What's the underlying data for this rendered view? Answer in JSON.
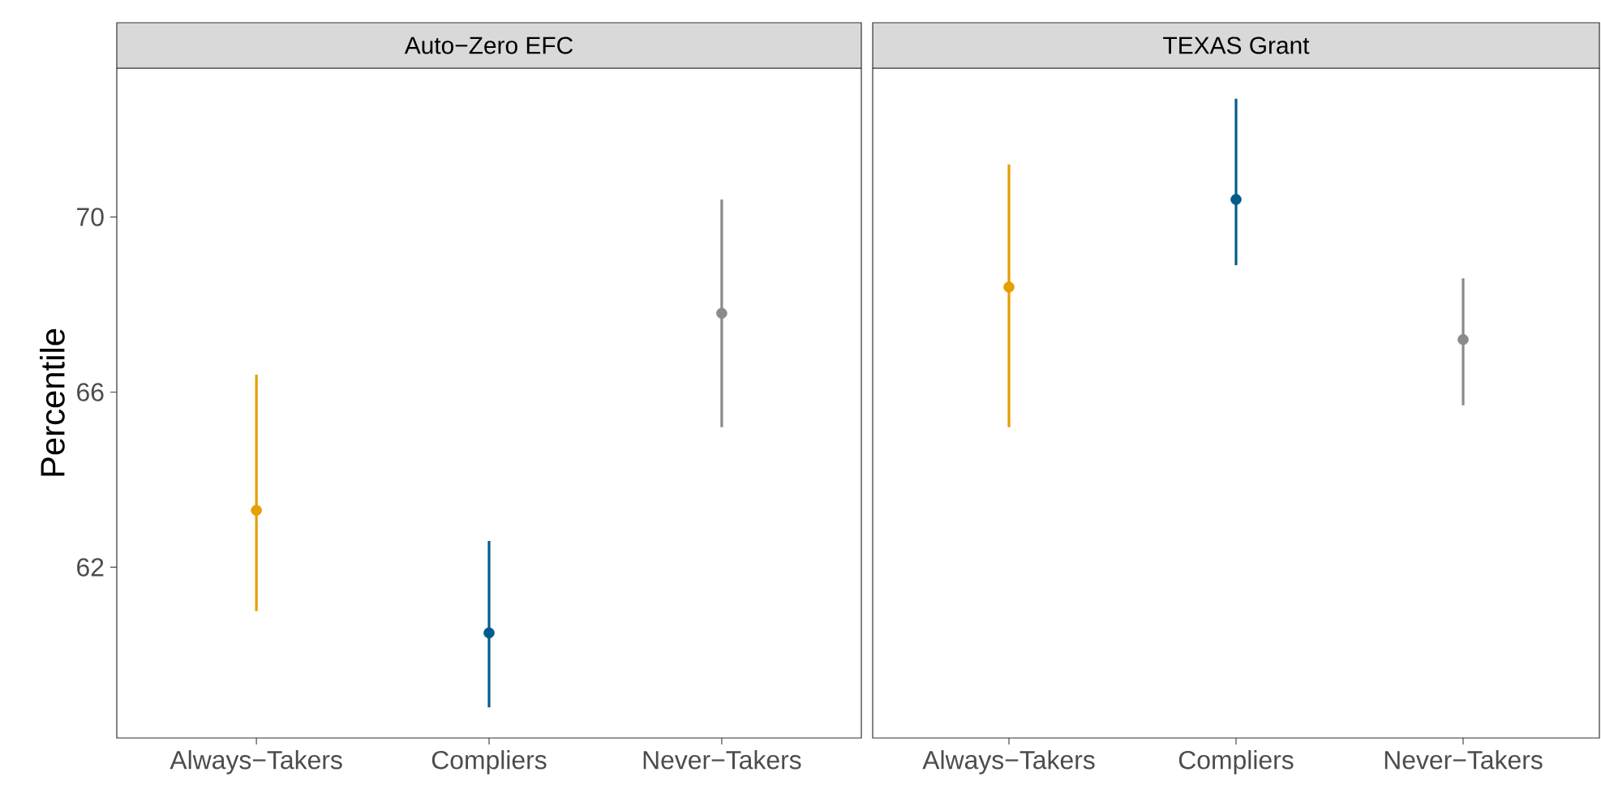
{
  "chart_data": [
    {
      "type": "scatter",
      "title": "Auto−Zero EFC",
      "ylabel": "Percentile",
      "categories": [
        "Always−Takers",
        "Compliers",
        "Never−Takers"
      ],
      "values": [
        63.3,
        60.5,
        67.8
      ],
      "errors": [
        [
          61.0,
          66.4
        ],
        [
          58.8,
          62.6
        ],
        [
          65.2,
          70.4
        ]
      ],
      "colors": [
        "#e69f00",
        "#035c8c",
        "#8a8a8a"
      ],
      "marker": "circle",
      "ylim": [
        58.1,
        73.4
      ],
      "yticks": [
        62,
        66,
        70
      ]
    },
    {
      "type": "scatter",
      "title": "TEXAS Grant",
      "categories": [
        "Always−Takers",
        "Compliers",
        "Never−Takers"
      ],
      "values": [
        68.4,
        70.4,
        67.2
      ],
      "errors": [
        [
          65.2,
          71.2
        ],
        [
          68.9,
          72.7
        ],
        [
          65.7,
          68.6
        ]
      ],
      "colors": [
        "#e69f00",
        "#035c8c",
        "#8a8a8a"
      ],
      "marker": "circle",
      "ylim": [
        58.1,
        73.4
      ],
      "tick_labels": "x"
    }
  ]
}
